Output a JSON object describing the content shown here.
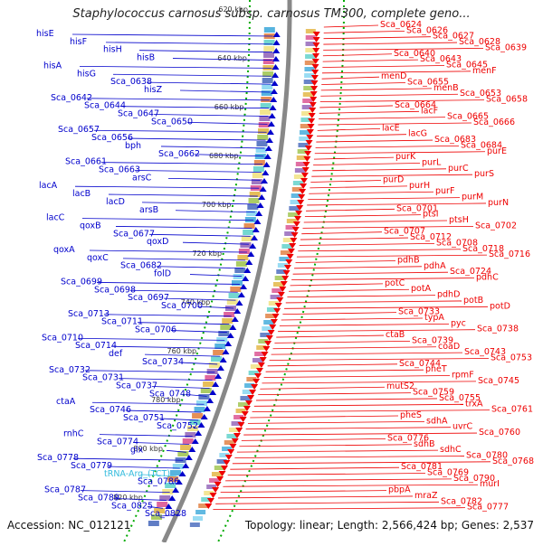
{
  "title": "Staphylococcus carnosus subsp. carnosus TM300, complete geno...",
  "footer": {
    "accession": "Accession: NC_012121",
    "stats": "Topology: linear; Length: 2,566,424 bp; Genes: 2,537"
  },
  "colors": {
    "forward": "#0000cc",
    "reverse": "#ee0000",
    "trna": "#33bbdd",
    "scale": "#00aa00",
    "backbone": "#888888"
  },
  "scale_labels": [
    "620 kbp",
    "640 kbp",
    "660 kbp",
    "680 kbp",
    "700 kbp",
    "720 kbp",
    "740 kbp",
    "760 kbp",
    "780 kbp",
    "800 kbp",
    "820 kbp"
  ],
  "forward_labels": [
    {
      "text": "hisE",
      "kind": "gene"
    },
    {
      "text": "hisF",
      "kind": "gene"
    },
    {
      "text": "hisH",
      "kind": "gene"
    },
    {
      "text": "hisB",
      "kind": "gene"
    },
    {
      "text": "hisA",
      "kind": "gene"
    },
    {
      "text": "hisG",
      "kind": "gene"
    },
    {
      "text": "Sca_0638",
      "kind": "gene"
    },
    {
      "text": "hisZ",
      "kind": "gene"
    },
    {
      "text": "Sca_0642",
      "kind": "gene"
    },
    {
      "text": "Sca_0644",
      "kind": "gene"
    },
    {
      "text": "Sca_0647",
      "kind": "gene"
    },
    {
      "text": "Sca_0650",
      "kind": "gene"
    },
    {
      "text": "Sca_0657",
      "kind": "gene"
    },
    {
      "text": "Sca_0656",
      "kind": "gene"
    },
    {
      "text": "bph",
      "kind": "gene"
    },
    {
      "text": "Sca_0662",
      "kind": "gene"
    },
    {
      "text": "Sca_0661",
      "kind": "gene"
    },
    {
      "text": "Sca_0663",
      "kind": "gene"
    },
    {
      "text": "arsC",
      "kind": "gene"
    },
    {
      "text": "lacA",
      "kind": "gene"
    },
    {
      "text": "lacB",
      "kind": "gene"
    },
    {
      "text": "lacD",
      "kind": "gene"
    },
    {
      "text": "arsB",
      "kind": "gene"
    },
    {
      "text": "lacC",
      "kind": "gene"
    },
    {
      "text": "qoxB",
      "kind": "gene"
    },
    {
      "text": "Sca_0677",
      "kind": "gene"
    },
    {
      "text": "qoxD",
      "kind": "gene"
    },
    {
      "text": "qoxA",
      "kind": "gene"
    },
    {
      "text": "qoxC",
      "kind": "gene"
    },
    {
      "text": "Sca_0682",
      "kind": "gene"
    },
    {
      "text": "folD",
      "kind": "gene"
    },
    {
      "text": "Sca_0699",
      "kind": "gene"
    },
    {
      "text": "Sca_0698",
      "kind": "gene"
    },
    {
      "text": "Sca_0697",
      "kind": "gene"
    },
    {
      "text": "Sca_0700",
      "kind": "gene"
    },
    {
      "text": "Sca_0713",
      "kind": "gene"
    },
    {
      "text": "Sca_0711",
      "kind": "gene"
    },
    {
      "text": "Sca_0706",
      "kind": "gene"
    },
    {
      "text": "Sca_0710",
      "kind": "gene"
    },
    {
      "text": "Sca_0714",
      "kind": "gene"
    },
    {
      "text": "def",
      "kind": "gene"
    },
    {
      "text": "Sca_0734",
      "kind": "gene"
    },
    {
      "text": "Sca_0732",
      "kind": "gene"
    },
    {
      "text": "Sca_0731",
      "kind": "gene"
    },
    {
      "text": "Sca_0737",
      "kind": "gene"
    },
    {
      "text": "Sca_0748",
      "kind": "gene"
    },
    {
      "text": "ctaA",
      "kind": "gene"
    },
    {
      "text": "Sca_0746",
      "kind": "gene"
    },
    {
      "text": "Sca_0751",
      "kind": "gene"
    },
    {
      "text": "Sca_0752",
      "kind": "gene"
    },
    {
      "text": "rnhC",
      "kind": "gene"
    },
    {
      "text": "Sca_0774",
      "kind": "gene"
    },
    {
      "text": "glx",
      "kind": "gene"
    },
    {
      "text": "Sca_0778",
      "kind": "gene"
    },
    {
      "text": "Sca_0779",
      "kind": "gene"
    },
    {
      "text": "tRNA-Arg_(TCT)",
      "kind": "trna"
    },
    {
      "text": "Sca_0786",
      "kind": "gene"
    },
    {
      "text": "Sca_0787",
      "kind": "gene"
    },
    {
      "text": "Sca_0789",
      "kind": "gene"
    },
    {
      "text": "Sca_0825",
      "kind": "gene"
    },
    {
      "text": "Sca_0828",
      "kind": "gene"
    }
  ],
  "reverse_labels": [
    "Sca_0624",
    "Sca_0626",
    "Sca_0627",
    "Sca_0628",
    "Sca_0639",
    "Sca_0640",
    "Sca_0643",
    "Sca_0645",
    "menF",
    "menD",
    "Sca_0655",
    "menB",
    "Sca_0653",
    "Sca_0658",
    "Sca_0664",
    "lacF",
    "Sca_0665",
    "Sca_0666",
    "lacE",
    "lacG",
    "Sca_0683",
    "Sca_0684",
    "purE",
    "purK",
    "purL",
    "purC",
    "purS",
    "purD",
    "purH",
    "purF",
    "purM",
    "purN",
    "Sca_0701",
    "ptsI",
    "ptsH",
    "Sca_0702",
    "Sca_0707",
    "Sca_0712",
    "Sca_0708",
    "Sca_0718",
    "Sca_0716",
    "pdhB",
    "pdhA",
    "Sca_0724",
    "pdhC",
    "potC",
    "potA",
    "pdhD",
    "potB",
    "potD",
    "Sca_0733",
    "typA",
    "pyc",
    "Sca_0738",
    "ctaB",
    "Sca_0739",
    "coaD",
    "Sca_0743",
    "Sca_0753",
    "Sca_0744",
    "pheT",
    "rpmF",
    "Sca_0745",
    "mutS2",
    "Sca_0759",
    "Sca_0755",
    "trxA",
    "Sca_0761",
    "pheS",
    "sdhA",
    "uvrC",
    "Sca_0760",
    "Sca_0776",
    "sdhB",
    "sdhC",
    "Sca_0780",
    "Sca_0768",
    "Sca_0781",
    "Sca_0769",
    "Sca_0790",
    "murI",
    "pbpA",
    "mraZ",
    "Sca_0782",
    "Sca_0777"
  ]
}
